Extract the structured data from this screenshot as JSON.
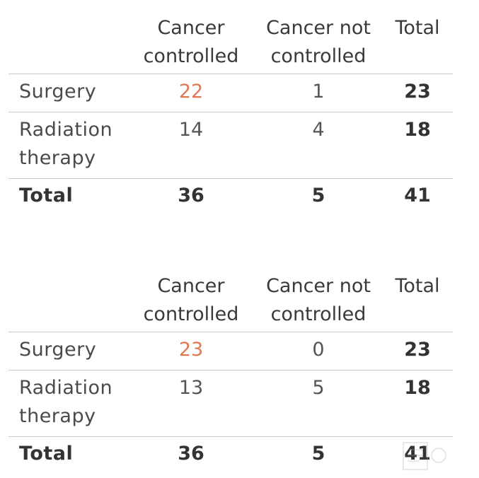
{
  "tables": [
    {
      "headers": {
        "col1": [
          "Cancer",
          "controlled"
        ],
        "col2": [
          "Cancer not",
          "controlled"
        ],
        "col3": "Total"
      },
      "rows": {
        "surgery": {
          "label": "Surgery",
          "controlled": "22",
          "not_controlled": "1",
          "total": "23"
        },
        "radiation": {
          "label": [
            "Radiation",
            "therapy"
          ],
          "controlled": "14",
          "not_controlled": "4",
          "total": "18"
        },
        "total": {
          "label": "Total",
          "controlled": "36",
          "not_controlled": "5",
          "total": "41"
        }
      }
    },
    {
      "headers": {
        "col1": [
          "Cancer",
          "controlled"
        ],
        "col2": [
          "Cancer not",
          "controlled"
        ],
        "col3": "Total"
      },
      "rows": {
        "surgery": {
          "label": "Surgery",
          "controlled": "23",
          "not_controlled": "0",
          "total": "23"
        },
        "radiation": {
          "label": [
            "Radiation",
            "therapy"
          ],
          "controlled": "13",
          "not_controlled": "5",
          "total": "18"
        },
        "total": {
          "label": "Total",
          "controlled": "36",
          "not_controlled": "5",
          "total": "41"
        }
      }
    }
  ],
  "colors": {
    "highlight": "#e07850",
    "text": "#3a3a3a",
    "rule": "#c8c8c8"
  }
}
